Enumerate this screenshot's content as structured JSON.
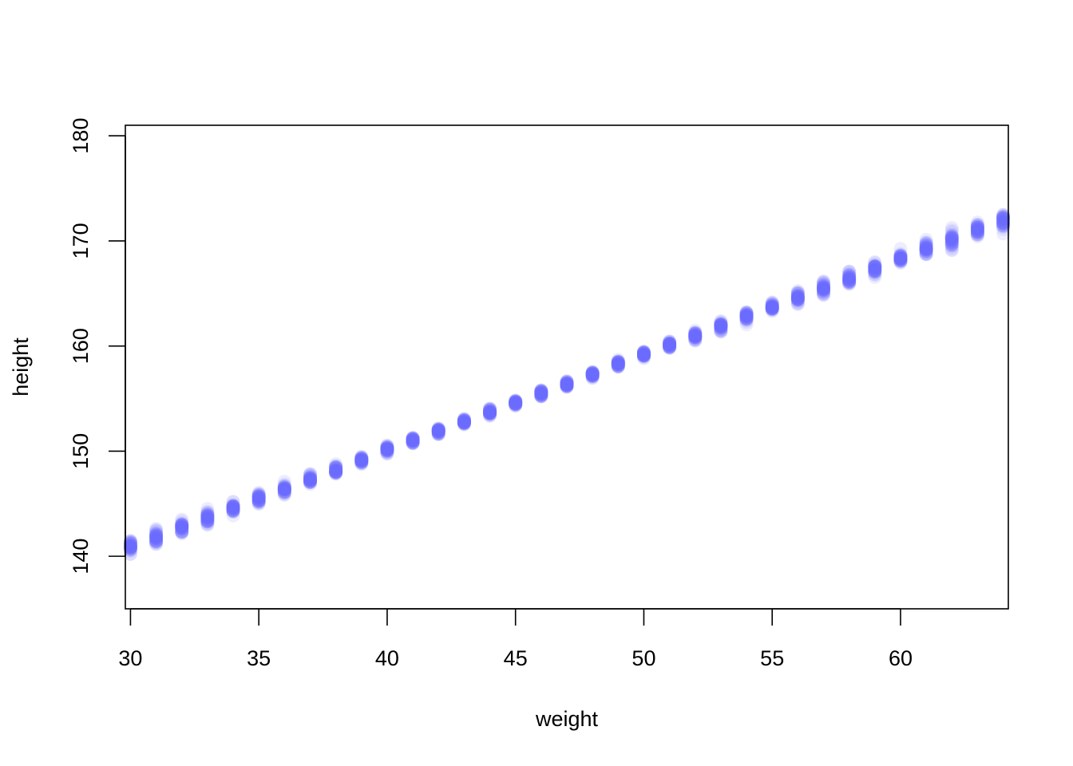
{
  "chart_data": {
    "type": "scatter",
    "title": "",
    "xlabel": "weight",
    "ylabel": "height",
    "xlim": [
      29.8,
      64.2
    ],
    "ylim": [
      135,
      181
    ],
    "x_ticks": [
      "30",
      "35",
      "40",
      "45",
      "50",
      "55",
      "60"
    ],
    "y_ticks": [
      "140",
      "150",
      "160",
      "170",
      "180"
    ],
    "grid": false,
    "point_color": "#6b6bff",
    "point_opacity": 0.12,
    "series": [
      {
        "description": "posterior mean-height samples at each integer weight",
        "x": [
          30,
          31,
          32,
          33,
          34,
          35,
          36,
          37,
          38,
          39,
          40,
          41,
          42,
          43,
          44,
          45,
          46,
          47,
          48,
          49,
          50,
          51,
          52,
          53,
          54,
          55,
          56,
          57,
          58,
          59,
          60,
          61,
          62,
          63,
          64
        ],
        "y_center": [
          140.9,
          141.8,
          142.7,
          143.7,
          144.6,
          145.5,
          146.4,
          147.3,
          148.2,
          149.1,
          150.1,
          151.0,
          151.9,
          152.8,
          153.7,
          154.6,
          155.5,
          156.4,
          157.3,
          158.3,
          159.2,
          160.1,
          161.0,
          161.9,
          162.8,
          163.7,
          164.6,
          165.6,
          166.5,
          167.4,
          168.3,
          169.2,
          170.1,
          171.0,
          171.9
        ],
        "y_spread": [
          1.1,
          1.05,
          1.0,
          0.95,
          0.9,
          0.85,
          0.8,
          0.75,
          0.7,
          0.65,
          0.6,
          0.55,
          0.5,
          0.48,
          0.45,
          0.45,
          0.45,
          0.45,
          0.48,
          0.5,
          0.55,
          0.6,
          0.65,
          0.7,
          0.75,
          0.8,
          0.85,
          0.9,
          0.95,
          1.0,
          1.05,
          1.1,
          1.15,
          1.2,
          1.25
        ]
      }
    ]
  }
}
